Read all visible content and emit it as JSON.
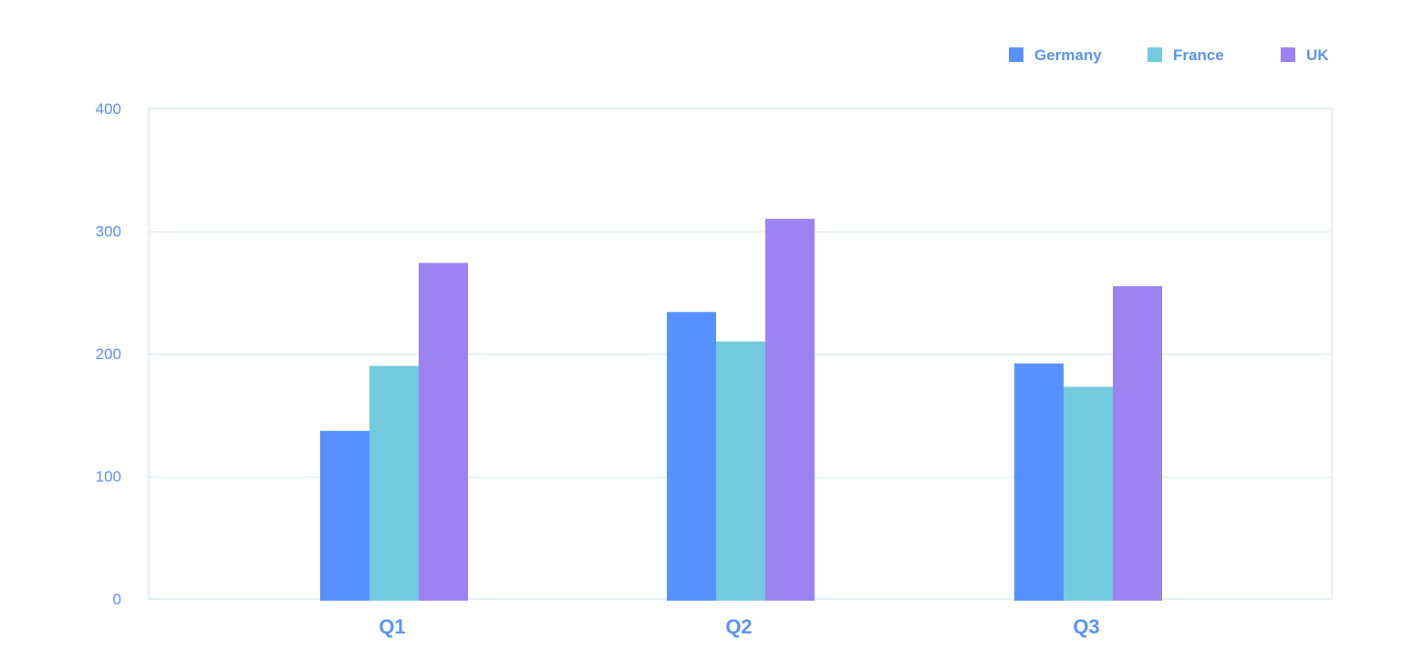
{
  "chart_data": {
    "type": "bar",
    "categories": [
      "Q1",
      "Q2",
      "Q3"
    ],
    "series": [
      {
        "name": "Germany",
        "values": [
          137,
          234,
          192
        ],
        "color": "#5592ff"
      },
      {
        "name": "France",
        "values": [
          190,
          210,
          173
        ],
        "color": "#74cbde"
      },
      {
        "name": "UK",
        "values": [
          274,
          310,
          255
        ],
        "color": "#9b83f2"
      }
    ],
    "ylim": [
      0,
      400
    ],
    "yticks": [
      0,
      100,
      200,
      300,
      400
    ],
    "grid": true,
    "legend_position": "top-right",
    "colors": {
      "tick_text": "#5a94f2",
      "grid": "#d6e9f3",
      "frame": "#c9e2ef"
    }
  }
}
